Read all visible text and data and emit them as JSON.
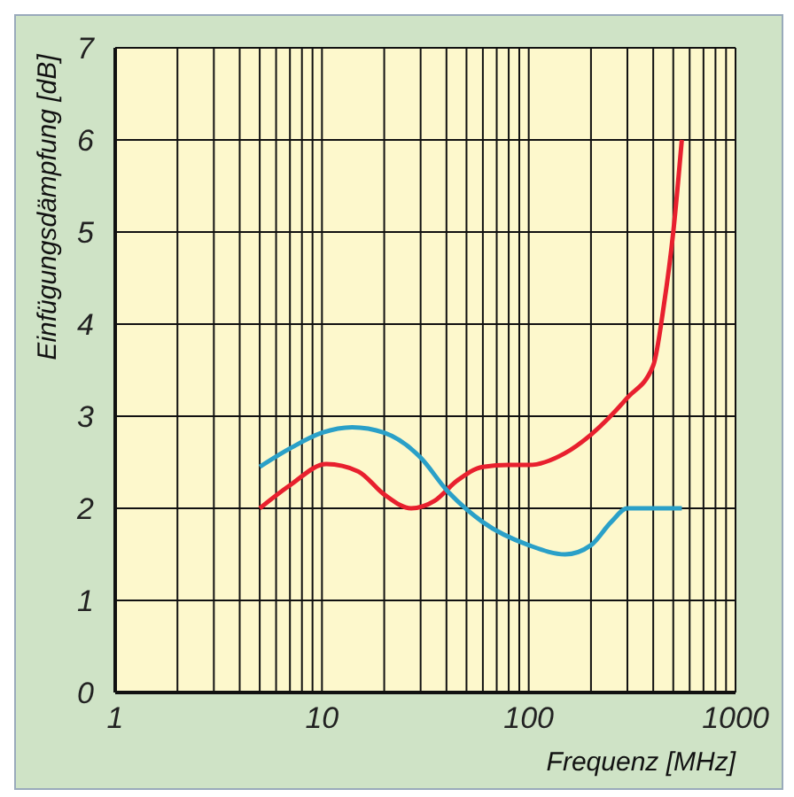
{
  "chart_data": {
    "type": "line",
    "xlabel": "Frequenz [MHz]",
    "ylabel": "Einfügungsdämpfung [dB]",
    "log": "x",
    "xlim": [
      1,
      1000
    ],
    "ylim": [
      0,
      7
    ],
    "xticks": [
      1,
      {
        "value": 2,
        "label": null
      },
      {
        "value": 3,
        "label": null
      },
      {
        "value": 4,
        "label": null
      },
      {
        "value": 5,
        "label": null
      },
      {
        "value": 6,
        "label": null
      },
      {
        "value": 7,
        "label": null
      },
      {
        "value": 8,
        "label": null
      },
      {
        "value": 9,
        "label": null
      },
      10,
      {
        "value": 20,
        "label": null
      },
      {
        "value": 30,
        "label": null
      },
      {
        "value": 40,
        "label": null
      },
      {
        "value": 50,
        "label": null
      },
      {
        "value": 60,
        "label": null
      },
      {
        "value": 70,
        "label": null
      },
      {
        "value": 80,
        "label": null
      },
      {
        "value": 90,
        "label": null
      },
      100,
      {
        "value": 200,
        "label": null
      },
      {
        "value": 300,
        "label": null
      },
      {
        "value": 400,
        "label": null
      },
      {
        "value": 500,
        "label": null
      },
      {
        "value": 600,
        "label": null
      },
      {
        "value": 700,
        "label": null
      },
      {
        "value": 800,
        "label": null
      },
      {
        "value": 900,
        "label": null
      },
      1000
    ],
    "yticks": [
      0,
      1,
      2,
      3,
      4,
      5,
      6,
      7
    ],
    "grid": true,
    "legend": false,
    "marker": "none",
    "line_style": "solid",
    "series": [
      {
        "color": "#e8202e",
        "x": [
          5,
          7,
          10.5,
          15,
          20,
          27,
          35,
          45,
          60,
          80,
          100,
          150,
          200,
          300,
          400,
          450,
          500,
          550
        ],
        "values": [
          2.0,
          2.25,
          2.48,
          2.4,
          2.15,
          2.0,
          2.08,
          2.3,
          2.45,
          2.47,
          2.47,
          2.6,
          2.8,
          3.2,
          3.55,
          4.2,
          5.0,
          6.0
        ]
      },
      {
        "color": "#2aa0c8",
        "x": [
          5,
          7,
          10,
          14,
          20,
          30,
          40,
          60,
          100,
          150,
          200,
          250,
          300,
          400,
          550
        ],
        "values": [
          2.45,
          2.65,
          2.82,
          2.88,
          2.82,
          2.55,
          2.2,
          1.85,
          1.6,
          1.5,
          1.6,
          1.85,
          2.0,
          2.0,
          2.0
        ]
      }
    ]
  }
}
